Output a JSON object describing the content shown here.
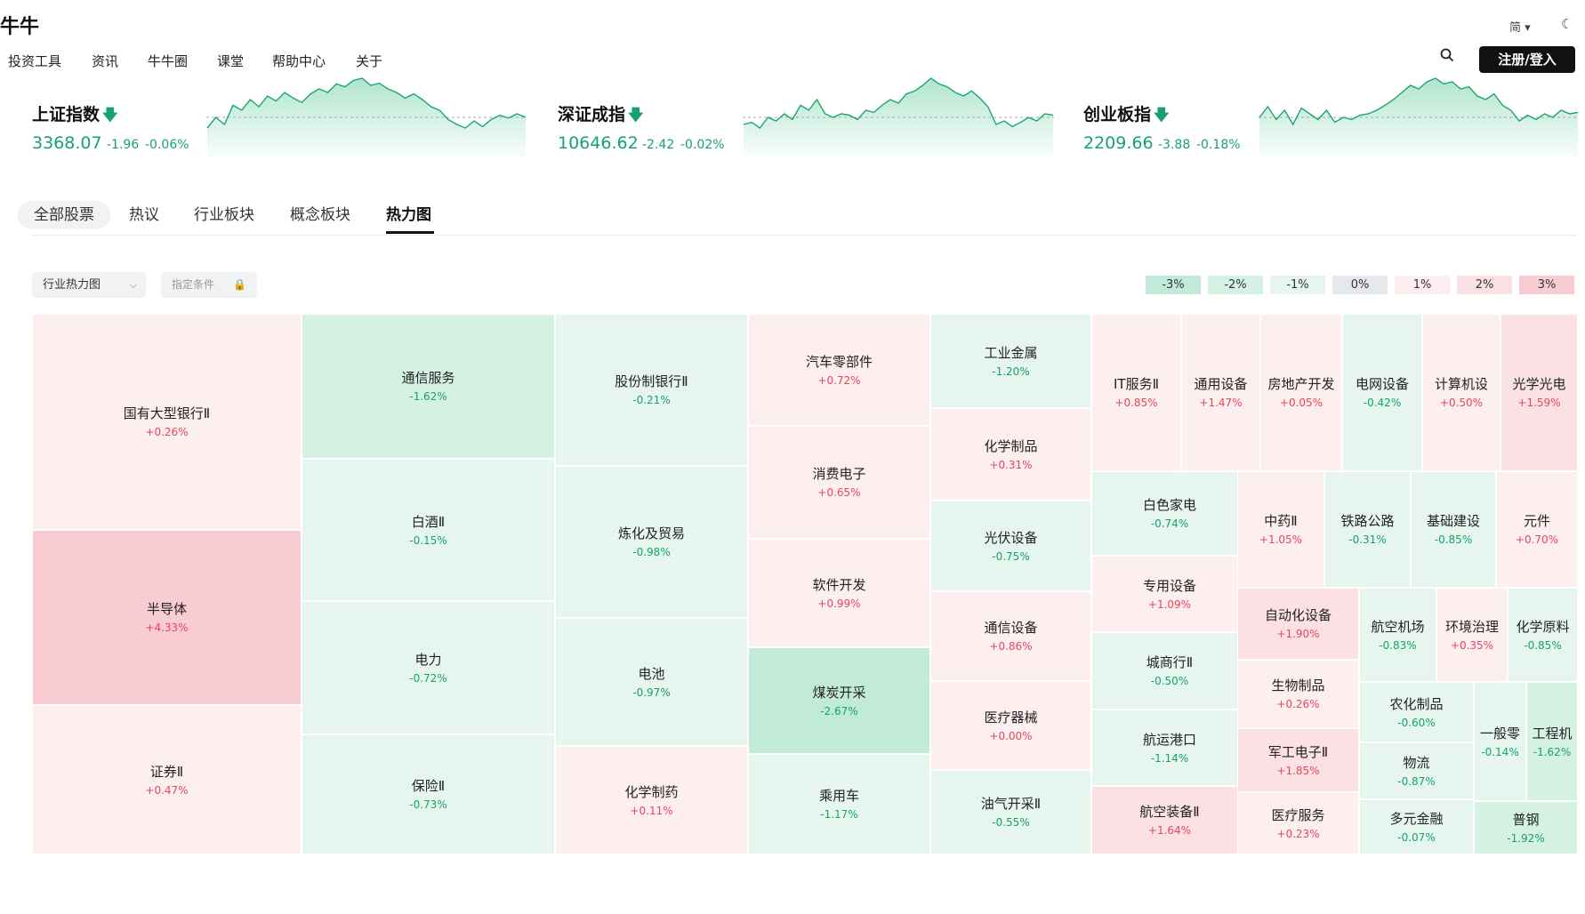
{
  "app": {
    "logo_text": "牛牛"
  },
  "nav": {
    "items": [
      "投资工具",
      "资讯",
      "牛牛圈",
      "课堂",
      "帮助中心",
      "关于"
    ],
    "lang": "简 ▾",
    "register_label": "注册/登入"
  },
  "indices": [
    {
      "name": "上证指数",
      "value": "3368.07",
      "change": "-1.96",
      "percent": "-0.06%",
      "spark": [
        0.3,
        0.45,
        0.35,
        0.62,
        0.55,
        0.7,
        0.6,
        0.75,
        0.68,
        0.8,
        0.72,
        0.66,
        0.78,
        0.85,
        0.8,
        0.92,
        0.88,
        0.97,
        1.0,
        0.9,
        0.93,
        0.85,
        0.8,
        0.72,
        0.78,
        0.7,
        0.6,
        0.55,
        0.42,
        0.35,
        0.3,
        0.4,
        0.32,
        0.42,
        0.48,
        0.44,
        0.5,
        0.45
      ]
    },
    {
      "name": "深证成指",
      "value": "10646.62",
      "change": "-2.42",
      "percent": "-0.02%",
      "spark": [
        0.35,
        0.38,
        0.3,
        0.45,
        0.4,
        0.5,
        0.42,
        0.62,
        0.55,
        0.7,
        0.5,
        0.45,
        0.5,
        0.48,
        0.42,
        0.55,
        0.52,
        0.62,
        0.7,
        0.65,
        0.78,
        0.82,
        0.9,
        1.0,
        0.92,
        0.88,
        0.8,
        0.75,
        0.82,
        0.72,
        0.6,
        0.35,
        0.4,
        0.32,
        0.38,
        0.45,
        0.4,
        0.5,
        0.48
      ]
    },
    {
      "name": "创业板指",
      "value": "2209.66",
      "change": "-3.88",
      "percent": "-0.18%",
      "spark": [
        0.45,
        0.6,
        0.42,
        0.55,
        0.35,
        0.58,
        0.5,
        0.42,
        0.55,
        0.38,
        0.45,
        0.42,
        0.48,
        0.5,
        0.55,
        0.62,
        0.7,
        0.8,
        0.9,
        0.85,
        0.95,
        1.0,
        0.92,
        0.95,
        0.85,
        0.88,
        0.75,
        0.7,
        0.78,
        0.62,
        0.55,
        0.4,
        0.48,
        0.42,
        0.5,
        0.45,
        0.55,
        0.5,
        0.52
      ]
    }
  ],
  "tabs": [
    "全部股票",
    "热议",
    "行业板块",
    "概念板块",
    "热力图"
  ],
  "filters": {
    "heatmap_select": "行业热力图",
    "condition_button": "指定条件"
  },
  "legend": [
    {
      "label": "-3%",
      "color": "#c2ead8"
    },
    {
      "label": "-2%",
      "color": "#d4f1e4"
    },
    {
      "label": "-1%",
      "color": "#e6f6ef"
    },
    {
      "label": "0%",
      "color": "#e5e8ec"
    },
    {
      "label": "1%",
      "color": "#fdeef0"
    },
    {
      "label": "2%",
      "color": "#fbe0e4"
    },
    {
      "label": "3%",
      "color": "#f9ccd4"
    }
  ],
  "heatmap": [
    {
      "name": "国有大型银行Ⅱ",
      "change": "+0.26%"
    },
    {
      "name": "半导体",
      "change": "+4.33%"
    },
    {
      "name": "证券Ⅱ",
      "change": "+0.47%"
    },
    {
      "name": "通信服务",
      "change": "-1.62%"
    },
    {
      "name": "白酒Ⅱ",
      "change": "-0.15%"
    },
    {
      "name": "电力",
      "change": "-0.72%"
    },
    {
      "name": "保险Ⅱ",
      "change": "-0.73%"
    },
    {
      "name": "股份制银行Ⅱ",
      "change": "-0.21%"
    },
    {
      "name": "炼化及贸易",
      "change": "-0.98%"
    },
    {
      "name": "电池",
      "change": "-0.97%"
    },
    {
      "name": "化学制药",
      "change": "+0.11%"
    },
    {
      "name": "汽车零部件",
      "change": "+0.72%"
    },
    {
      "name": "消费电子",
      "change": "+0.65%"
    },
    {
      "name": "软件开发",
      "change": "+0.99%"
    },
    {
      "name": "煤炭开采",
      "change": "-2.67%"
    },
    {
      "name": "乘用车",
      "change": "-1.17%"
    },
    {
      "name": "工业金属",
      "change": "-1.20%"
    },
    {
      "name": "化学制品",
      "change": "+0.31%"
    },
    {
      "name": "光伏设备",
      "change": "-0.75%"
    },
    {
      "name": "通信设备",
      "change": "+0.86%"
    },
    {
      "name": "医疗器械",
      "change": "+0.00%"
    },
    {
      "name": "油气开采Ⅱ",
      "change": "-0.55%"
    },
    {
      "name": "IT服务Ⅱ",
      "change": "+0.85%"
    },
    {
      "name": "通用设备",
      "change": "+1.47%"
    },
    {
      "name": "房地产开发",
      "change": "+0.05%"
    },
    {
      "name": "电网设备",
      "change": "-0.42%"
    },
    {
      "name": "计算机设",
      "change": "+0.50%"
    },
    {
      "name": "光学光电",
      "change": "+1.59%"
    },
    {
      "name": "白色家电",
      "change": "-0.74%"
    },
    {
      "name": "专用设备",
      "change": "+1.09%"
    },
    {
      "name": "城商行Ⅱ",
      "change": "-0.50%"
    },
    {
      "name": "航运港口",
      "change": "-1.14%"
    },
    {
      "name": "航空装备Ⅱ",
      "change": "+1.64%"
    },
    {
      "name": "中药Ⅱ",
      "change": "+1.05%"
    },
    {
      "name": "铁路公路",
      "change": "-0.31%"
    },
    {
      "name": "基础建设",
      "change": "-0.85%"
    },
    {
      "name": "元件",
      "change": "+0.70%"
    },
    {
      "name": "自动化设备",
      "change": "+1.90%"
    },
    {
      "name": "生物制品",
      "change": "+0.26%"
    },
    {
      "name": "军工电子Ⅱ",
      "change": "+1.85%"
    },
    {
      "name": "医疗服务",
      "change": "+0.23%"
    },
    {
      "name": "航空机场",
      "change": "-0.83%"
    },
    {
      "name": "环境治理",
      "change": "+0.35%"
    },
    {
      "name": "化学原料",
      "change": "-0.85%"
    },
    {
      "name": "农化制品",
      "change": "-0.60%"
    },
    {
      "name": "物流",
      "change": "-0.87%"
    },
    {
      "name": "多元金融",
      "change": "-0.07%"
    },
    {
      "name": "一般零",
      "change": "-0.14%"
    },
    {
      "name": "工程机",
      "change": "-1.62%"
    },
    {
      "name": "普钢",
      "change": "-1.92%"
    }
  ]
}
